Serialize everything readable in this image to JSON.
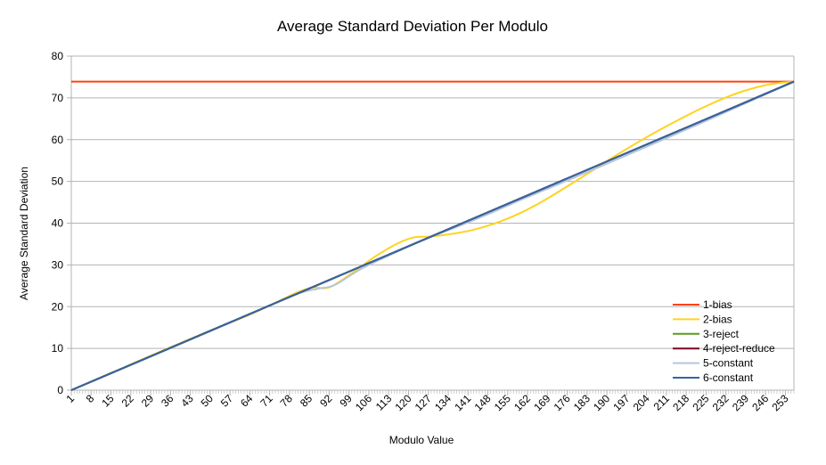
{
  "chart_data": {
    "type": "line",
    "title": "Average Standard Deviation Per Modulo",
    "xlabel": "Modulo Value",
    "ylabel": "Average Standard Deviation",
    "xlim": [
      1,
      256
    ],
    "ylim": [
      0,
      80
    ],
    "yticks": [
      0,
      10,
      20,
      30,
      40,
      50,
      60,
      70,
      80
    ],
    "xticks": [
      1,
      8,
      15,
      22,
      29,
      36,
      43,
      50,
      57,
      64,
      71,
      78,
      85,
      92,
      99,
      106,
      113,
      120,
      127,
      134,
      141,
      148,
      155,
      162,
      169,
      176,
      183,
      190,
      197,
      204,
      211,
      218,
      225,
      232,
      239,
      246,
      253
    ],
    "grid": true,
    "legend_position": "bottom-right",
    "series": [
      {
        "name": "1-bias",
        "color": "#ff420e",
        "x": [
          1,
          256
        ],
        "y": [
          73.9,
          73.9
        ]
      },
      {
        "name": "2-bias",
        "color": "#ffd320",
        "x": [
          1,
          16,
          32,
          48,
          64,
          72,
          80,
          86,
          92,
          100,
          108,
          116,
          122,
          128,
          136,
          144,
          152,
          160,
          168,
          176,
          184,
          192,
          200,
          208,
          216,
          224,
          232,
          240,
          248,
          256
        ],
        "y": [
          0,
          4.4,
          9.1,
          13.7,
          18.1,
          20.6,
          23.2,
          24.6,
          24.6,
          28.0,
          31.9,
          35.1,
          36.6,
          36.8,
          37.5,
          38.6,
          40.3,
          42.6,
          45.5,
          48.8,
          52.2,
          55.7,
          59.0,
          62.1,
          65.0,
          67.7,
          70.1,
          72.0,
          73.3,
          73.9
        ]
      },
      {
        "name": "3-reject",
        "color": "#579d1c",
        "x": [
          1,
          256
        ],
        "y": [
          0,
          73.9
        ]
      },
      {
        "name": "4-reject-reduce",
        "color": "#7e0021",
        "x": [
          1,
          256
        ],
        "y": [
          0,
          73.9
        ]
      },
      {
        "name": "5-constant",
        "color": "#aecf00",
        "x": [
          1,
          32,
          64,
          80,
          88,
          94,
          104,
          120,
          128,
          140,
          150,
          160,
          176,
          192,
          224,
          256
        ],
        "y": [
          0,
          8.9,
          18.2,
          22.9,
          24.3,
          25.2,
          29.3,
          34.4,
          36.7,
          39.9,
          42.7,
          45.7,
          50.2,
          54.8,
          64.2,
          73.9
        ]
      },
      {
        "name": "6-constant",
        "color": "#3465a4",
        "x": [
          1,
          256
        ],
        "y": [
          0,
          73.9
        ]
      }
    ],
    "legend_colors_override": {
      "5-constant": "#b4c7dc"
    }
  }
}
